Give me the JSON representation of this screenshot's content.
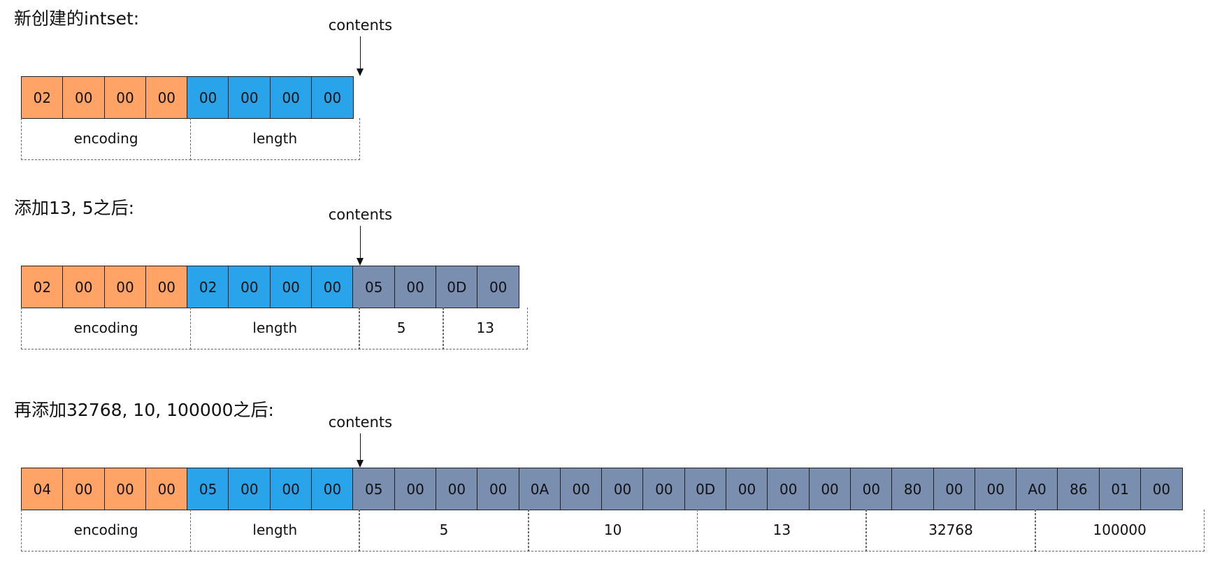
{
  "colors": {
    "encoding": "#ffa366",
    "length": "#29a3ea",
    "contents": "#7a8eb0"
  },
  "sections": [
    {
      "title": "新创建的intset:",
      "pointer_label": "contents",
      "bytes": [
        {
          "v": "02",
          "kind": "encoding"
        },
        {
          "v": "00",
          "kind": "encoding"
        },
        {
          "v": "00",
          "kind": "encoding"
        },
        {
          "v": "00",
          "kind": "encoding"
        },
        {
          "v": "00",
          "kind": "length"
        },
        {
          "v": "00",
          "kind": "length"
        },
        {
          "v": "00",
          "kind": "length"
        },
        {
          "v": "00",
          "kind": "length"
        }
      ],
      "fields": [
        {
          "label": "encoding",
          "span": 4
        },
        {
          "label": "length",
          "span": 4
        }
      ]
    },
    {
      "title": "添加13, 5之后:",
      "pointer_label": "contents",
      "bytes": [
        {
          "v": "02",
          "kind": "encoding"
        },
        {
          "v": "00",
          "kind": "encoding"
        },
        {
          "v": "00",
          "kind": "encoding"
        },
        {
          "v": "00",
          "kind": "encoding"
        },
        {
          "v": "02",
          "kind": "length"
        },
        {
          "v": "00",
          "kind": "length"
        },
        {
          "v": "00",
          "kind": "length"
        },
        {
          "v": "00",
          "kind": "length"
        },
        {
          "v": "05",
          "kind": "contents"
        },
        {
          "v": "00",
          "kind": "contents"
        },
        {
          "v": "0D",
          "kind": "contents"
        },
        {
          "v": "00",
          "kind": "contents"
        }
      ],
      "fields": [
        {
          "label": "encoding",
          "span": 4
        },
        {
          "label": "length",
          "span": 4
        },
        {
          "label": "5",
          "span": 2
        },
        {
          "label": "13",
          "span": 2
        }
      ]
    },
    {
      "title": "再添加32768, 10, 100000之后:",
      "pointer_label": "contents",
      "bytes": [
        {
          "v": "04",
          "kind": "encoding"
        },
        {
          "v": "00",
          "kind": "encoding"
        },
        {
          "v": "00",
          "kind": "encoding"
        },
        {
          "v": "00",
          "kind": "encoding"
        },
        {
          "v": "05",
          "kind": "length"
        },
        {
          "v": "00",
          "kind": "length"
        },
        {
          "v": "00",
          "kind": "length"
        },
        {
          "v": "00",
          "kind": "length"
        },
        {
          "v": "05",
          "kind": "contents"
        },
        {
          "v": "00",
          "kind": "contents"
        },
        {
          "v": "00",
          "kind": "contents"
        },
        {
          "v": "00",
          "kind": "contents"
        },
        {
          "v": "0A",
          "kind": "contents"
        },
        {
          "v": "00",
          "kind": "contents"
        },
        {
          "v": "00",
          "kind": "contents"
        },
        {
          "v": "00",
          "kind": "contents"
        },
        {
          "v": "0D",
          "kind": "contents"
        },
        {
          "v": "00",
          "kind": "contents"
        },
        {
          "v": "00",
          "kind": "contents"
        },
        {
          "v": "00",
          "kind": "contents"
        },
        {
          "v": "00",
          "kind": "contents"
        },
        {
          "v": "80",
          "kind": "contents"
        },
        {
          "v": "00",
          "kind": "contents"
        },
        {
          "v": "00",
          "kind": "contents"
        },
        {
          "v": "A0",
          "kind": "contents"
        },
        {
          "v": "86",
          "kind": "contents"
        },
        {
          "v": "01",
          "kind": "contents"
        },
        {
          "v": "00",
          "kind": "contents"
        }
      ],
      "fields": [
        {
          "label": "encoding",
          "span": 4
        },
        {
          "label": "length",
          "span": 4
        },
        {
          "label": "5",
          "span": 4
        },
        {
          "label": "10",
          "span": 4
        },
        {
          "label": "13",
          "span": 4
        },
        {
          "label": "32768",
          "span": 4
        },
        {
          "label": "100000",
          "span": 4
        }
      ]
    }
  ]
}
